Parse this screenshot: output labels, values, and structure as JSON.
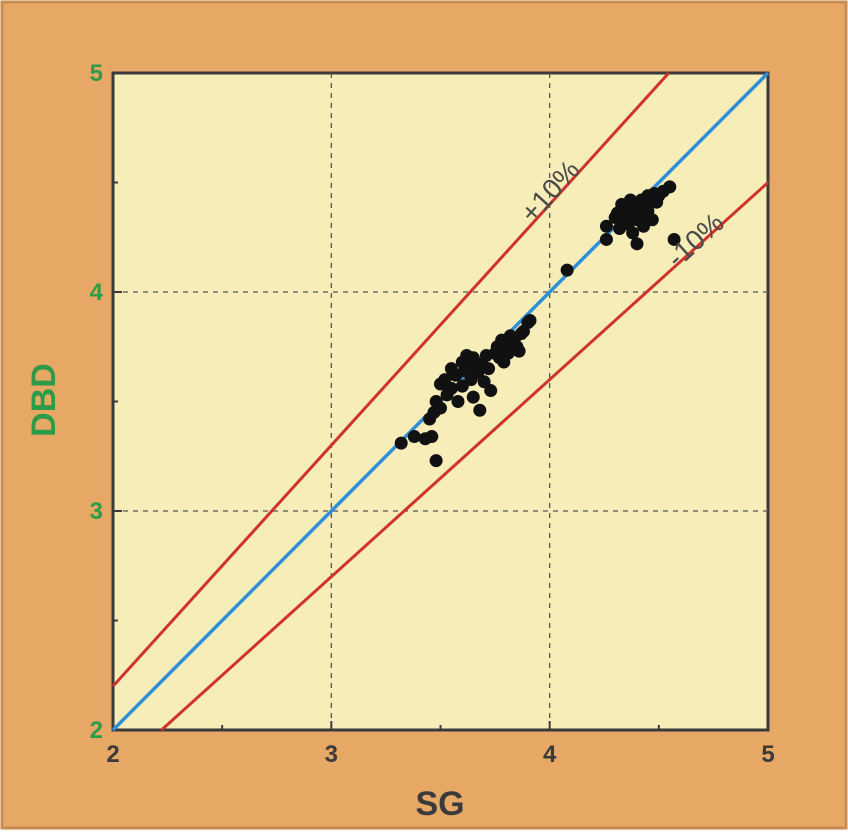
{
  "colors": {
    "frame": "#E7A866",
    "frame_border": "#C98C4E",
    "plot_bg": "#F7EDB8",
    "axis": "#3a3a3a",
    "grid": "#555555",
    "axis_label_y": "#2E9B48",
    "tick_label_y": "#2E9B48",
    "axis_label_x": "#3a3a3a",
    "tick_label_x": "#3a3a3a",
    "identity_line": "#2E8FD8",
    "bound_lines": "#D2322C",
    "points": "#111111",
    "annotation": "#4a4a4a"
  },
  "chart_data": {
    "type": "scatter",
    "title": "",
    "xlabel": "SG",
    "ylabel": "DBD",
    "xlim": [
      2,
      5
    ],
    "ylim": [
      2,
      5
    ],
    "xticks": [
      2,
      3,
      4,
      5
    ],
    "yticks": [
      2,
      3,
      4,
      5
    ],
    "grid": true,
    "grid_style": "dashed",
    "reference_lines": [
      {
        "kind": "identity",
        "slope": 1.0,
        "color": "#2E8FD8"
      },
      {
        "kind": "upper",
        "slope": 1.1,
        "label": "+10%",
        "color": "#D2322C"
      },
      {
        "kind": "lower",
        "slope": 0.9,
        "label": "-10%",
        "color": "#D2322C"
      }
    ],
    "series": [
      {
        "points": [
          [
            3.32,
            3.31
          ],
          [
            3.38,
            3.34
          ],
          [
            3.43,
            3.33
          ],
          [
            3.46,
            3.34
          ],
          [
            3.48,
            3.23
          ],
          [
            3.45,
            3.42
          ],
          [
            3.47,
            3.45
          ],
          [
            3.48,
            3.5
          ],
          [
            3.5,
            3.47
          ],
          [
            3.5,
            3.58
          ],
          [
            3.52,
            3.6
          ],
          [
            3.53,
            3.53
          ],
          [
            3.55,
            3.56
          ],
          [
            3.55,
            3.65
          ],
          [
            3.57,
            3.62
          ],
          [
            3.58,
            3.5
          ],
          [
            3.6,
            3.68
          ],
          [
            3.6,
            3.57
          ],
          [
            3.61,
            3.64
          ],
          [
            3.62,
            3.71
          ],
          [
            3.63,
            3.66
          ],
          [
            3.64,
            3.6
          ],
          [
            3.65,
            3.7
          ],
          [
            3.65,
            3.52
          ],
          [
            3.66,
            3.68
          ],
          [
            3.67,
            3.63
          ],
          [
            3.68,
            3.46
          ],
          [
            3.69,
            3.67
          ],
          [
            3.7,
            3.59
          ],
          [
            3.71,
            3.71
          ],
          [
            3.72,
            3.65
          ],
          [
            3.73,
            3.55
          ],
          [
            3.75,
            3.72
          ],
          [
            3.76,
            3.75
          ],
          [
            3.77,
            3.7
          ],
          [
            3.78,
            3.78
          ],
          [
            3.79,
            3.68
          ],
          [
            3.8,
            3.76
          ],
          [
            3.81,
            3.72
          ],
          [
            3.82,
            3.8
          ],
          [
            3.84,
            3.79
          ],
          [
            3.85,
            3.75
          ],
          [
            3.86,
            3.73
          ],
          [
            3.87,
            3.81
          ],
          [
            3.88,
            3.82
          ],
          [
            3.9,
            3.86
          ],
          [
            3.91,
            3.87
          ],
          [
            4.08,
            4.1
          ],
          [
            4.26,
            4.24
          ],
          [
            4.26,
            4.3
          ],
          [
            4.3,
            4.34
          ],
          [
            4.31,
            4.36
          ],
          [
            4.32,
            4.29
          ],
          [
            4.33,
            4.4
          ],
          [
            4.34,
            4.33
          ],
          [
            4.35,
            4.37
          ],
          [
            4.36,
            4.31
          ],
          [
            4.37,
            4.42
          ],
          [
            4.38,
            4.27
          ],
          [
            4.38,
            4.36
          ],
          [
            4.39,
            4.4
          ],
          [
            4.4,
            4.33
          ],
          [
            4.4,
            4.22
          ],
          [
            4.41,
            4.38
          ],
          [
            4.42,
            4.42
          ],
          [
            4.43,
            4.35
          ],
          [
            4.43,
            4.3
          ],
          [
            4.44,
            4.4
          ],
          [
            4.45,
            4.44
          ],
          [
            4.45,
            4.37
          ],
          [
            4.46,
            4.42
          ],
          [
            4.47,
            4.33
          ],
          [
            4.48,
            4.45
          ],
          [
            4.49,
            4.41
          ],
          [
            4.5,
            4.44
          ],
          [
            4.52,
            4.46
          ],
          [
            4.55,
            4.48
          ],
          [
            4.57,
            4.24
          ]
        ]
      }
    ],
    "annotations": [
      {
        "text": "+10%",
        "anchor": "upper"
      },
      {
        "text": "-10%",
        "anchor": "lower"
      }
    ]
  }
}
